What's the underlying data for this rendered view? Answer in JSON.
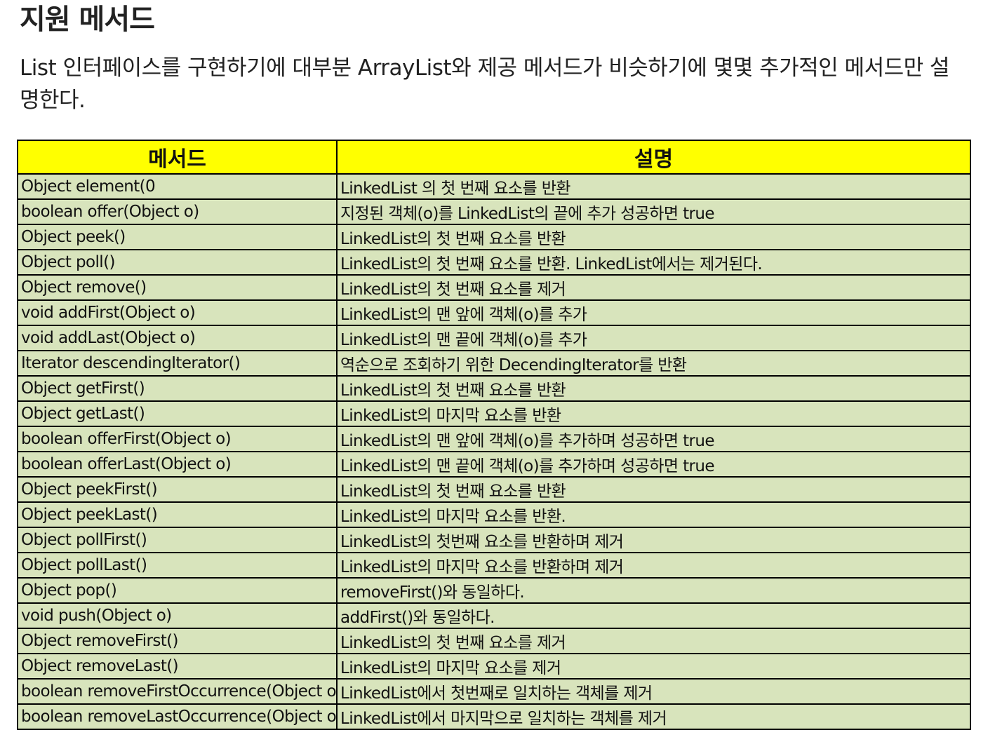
{
  "heading": "지원 메서드",
  "intro": "List 인터페이스를 구현하기에 대부분 ArrayList와 제공 메서드가 비슷하기에 몇몇 추가적인 메서드만 설명한다.",
  "table": {
    "headers": [
      "메서드",
      "설명"
    ],
    "rows": [
      [
        "Object element(0",
        "LinkedList 의 첫 번째 요소를 반환"
      ],
      [
        "boolean offer(Object o)",
        "지정된 객체(o)를 LinkedList의 끝에 추가 성공하면 true"
      ],
      [
        "Object peek()",
        "LinkedList의 첫 번째 요소를 반환"
      ],
      [
        "Object poll()",
        "LinkedList의 첫 번째 요소를 반환. LinkedList에서는 제거된다."
      ],
      [
        "Object remove()",
        "LinkedList의 첫 번째 요소를 제거"
      ],
      [
        "void addFirst(Object o)",
        "LinkedList의 맨 앞에 객체(o)를 추가"
      ],
      [
        "void addLast(Object o)",
        "LinkedList의 맨 끝에 객체(o)를 추가"
      ],
      [
        "Iterator descendingIterator()",
        "역순으로 조회하기 위한 DecendingIterator를 반환"
      ],
      [
        "Object getFirst()",
        "LinkedList의 첫 번째 요소를 반환"
      ],
      [
        "Object getLast()",
        "LinkedList의 마지막 요소를 반환"
      ],
      [
        "boolean offerFirst(Object o)",
        "LinkedList의 맨 앞에 객체(o)를 추가하며 성공하면 true"
      ],
      [
        "boolean offerLast(Object o)",
        "LinkedList의 맨 끝에 객체(o)를 추가하며 성공하면 true"
      ],
      [
        "Object peekFirst()",
        "LinkedList의 첫 번째 요소를 반환"
      ],
      [
        "Object peekLast()",
        "LinkedList의 마지막 요소를 반환."
      ],
      [
        "Object pollFirst()",
        "LinkedList의 첫번째 요소를 반환하며 제거"
      ],
      [
        "Object pollLast()",
        "LinkedList의 마지막 요소를 반환하며 제거"
      ],
      [
        "Object pop()",
        "removeFirst()와 동일하다."
      ],
      [
        "void push(Object o)",
        "addFirst()와 동일하다."
      ],
      [
        "Object removeFirst()",
        "LinkedList의 첫 번째 요소를 제거"
      ],
      [
        "Object removeLast()",
        "LinkedList의 마지막 요소를 제거"
      ],
      [
        "boolean removeFirstOccurrence(Object o)",
        "LinkedList에서 첫번째로 일치하는 객체를 제거"
      ],
      [
        "boolean removeLastOccurrence(Object o)",
        "LinkedList에서 마지막으로 일치하는 객체를 제거"
      ]
    ]
  }
}
